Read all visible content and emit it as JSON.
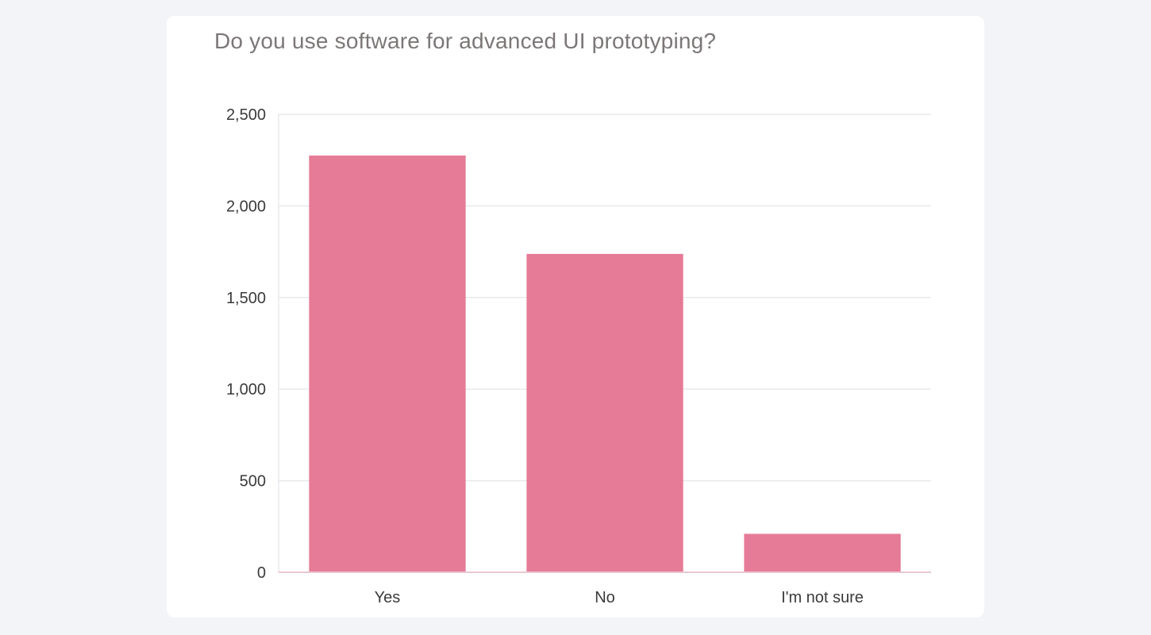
{
  "colors": {
    "bar": "#e57b97",
    "grid": "#e8e8ee",
    "axis": "#e9c8d2",
    "background": "#f3f4f8",
    "card": "#ffffff"
  },
  "chart_data": {
    "type": "bar",
    "title": "Do you use software for advanced UI prototyping?",
    "xlabel": "",
    "ylabel": "",
    "categories": [
      "Yes",
      "No",
      "I'm not sure"
    ],
    "values": [
      2275,
      1738,
      210
    ],
    "ylim": [
      0,
      2500
    ],
    "yticks": [
      0,
      500,
      1000,
      1500,
      2000,
      2500
    ],
    "ytick_labels": [
      "0",
      "500",
      "1,000",
      "1,500",
      "2,000",
      "2,500"
    ],
    "grid": true,
    "legend": "none"
  }
}
